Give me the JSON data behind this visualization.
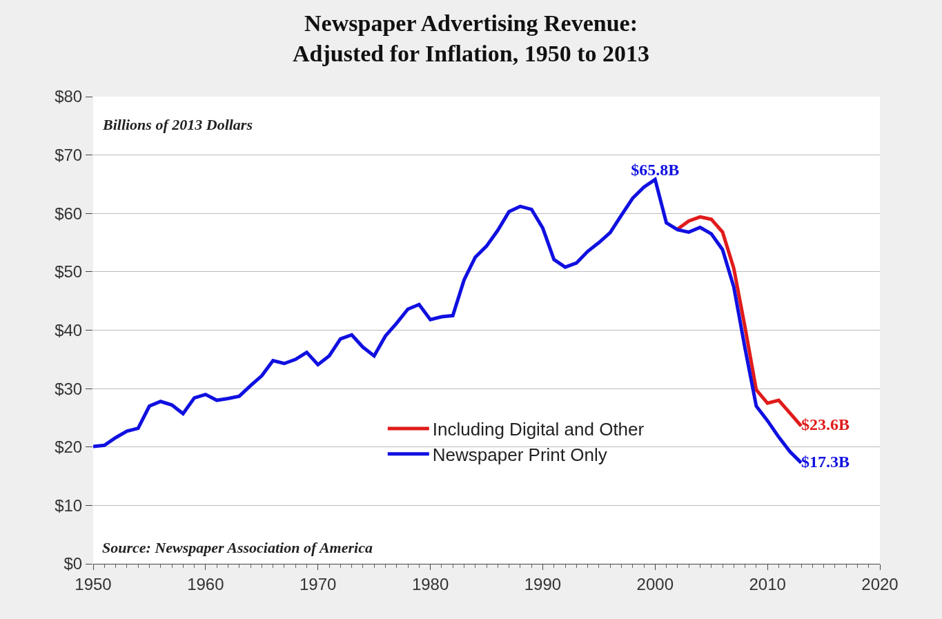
{
  "chart_data": {
    "type": "line",
    "title": "Newspaper Advertising Revenue:\nAdjusted for Inflation, 1950 to 2013",
    "x": [
      1950,
      1951,
      1952,
      1953,
      1954,
      1955,
      1956,
      1957,
      1958,
      1959,
      1960,
      1961,
      1962,
      1963,
      1964,
      1965,
      1966,
      1967,
      1968,
      1969,
      1970,
      1971,
      1972,
      1973,
      1974,
      1975,
      1976,
      1977,
      1978,
      1979,
      1980,
      1981,
      1982,
      1983,
      1984,
      1985,
      1986,
      1987,
      1988,
      1989,
      1990,
      1991,
      1992,
      1993,
      1994,
      1995,
      1996,
      1997,
      1998,
      1999,
      2000,
      2001,
      2002,
      2003,
      2004,
      2005,
      2006,
      2007,
      2008,
      2009,
      2010,
      2011,
      2012,
      2013
    ],
    "series": [
      {
        "name": "Including Digital and Other",
        "color": "#e01b1b",
        "x": [
          2002,
          2003,
          2004,
          2005,
          2006,
          2007,
          2008,
          2009,
          2010,
          2011,
          2012,
          2013
        ],
        "values": [
          57.3,
          58.7,
          59.4,
          59.0,
          56.8,
          50.6,
          40.5,
          29.8,
          27.5,
          28.0,
          25.8,
          23.6
        ],
        "value_labels": [
          null,
          null,
          null,
          null,
          null,
          null,
          null,
          null,
          null,
          null,
          null,
          "$23.6B"
        ]
      },
      {
        "name": "Newspaper Print Only",
        "color": "#1010e0",
        "values": [
          20.1,
          20.3,
          21.6,
          22.7,
          23.2,
          27.0,
          27.8,
          27.2,
          25.7,
          28.4,
          29.0,
          28.0,
          28.3,
          28.7,
          30.5,
          32.2,
          34.8,
          34.3,
          35.0,
          36.2,
          34.1,
          35.6,
          38.5,
          39.2,
          37.1,
          35.6,
          39.0,
          41.2,
          43.6,
          44.4,
          41.8,
          42.3,
          42.5,
          48.6,
          52.5,
          54.4,
          57.1,
          60.3,
          61.2,
          60.7,
          57.5,
          52.1,
          50.8,
          51.5,
          53.5,
          55.0,
          56.7,
          59.7,
          62.6,
          64.5,
          65.8,
          58.4,
          57.2,
          56.8,
          57.6,
          56.5,
          53.8,
          47.4,
          36.9,
          27.0,
          24.5,
          21.7,
          19.2,
          17.3
        ],
        "value_labels": [
          null,
          null,
          null,
          null,
          null,
          null,
          null,
          null,
          null,
          null,
          null,
          null,
          null,
          null,
          null,
          null,
          null,
          null,
          null,
          null,
          null,
          null,
          null,
          null,
          null,
          null,
          null,
          null,
          null,
          null,
          null,
          null,
          null,
          null,
          null,
          null,
          null,
          null,
          null,
          null,
          null,
          null,
          null,
          null,
          null,
          null,
          null,
          null,
          null,
          null,
          "$65.8B",
          null,
          null,
          null,
          null,
          null,
          null,
          null,
          null,
          null,
          null,
          null,
          null,
          "$17.3B"
        ]
      }
    ],
    "xlim": [
      1950,
      2020
    ],
    "xticks": [
      1950,
      1960,
      1970,
      1980,
      1990,
      2000,
      2010,
      2020
    ],
    "ylim": [
      0,
      80
    ],
    "yticks": [
      {
        "value": 0,
        "label": "$0"
      },
      {
        "value": 10,
        "label": "$10"
      },
      {
        "value": 20,
        "label": "$20"
      },
      {
        "value": 30,
        "label": "$30"
      },
      {
        "value": 40,
        "label": "$40"
      },
      {
        "value": 50,
        "label": "$50"
      },
      {
        "value": 60,
        "label": "$60"
      },
      {
        "value": 70,
        "label": "$70"
      },
      {
        "value": 80,
        "label": "$80"
      }
    ],
    "grid": "y",
    "legend": "bottom",
    "marker": "none",
    "line_style": "solid",
    "annotations": [
      "Billions of 2013 Dollars",
      "Source: Newspaper Association of America"
    ]
  }
}
